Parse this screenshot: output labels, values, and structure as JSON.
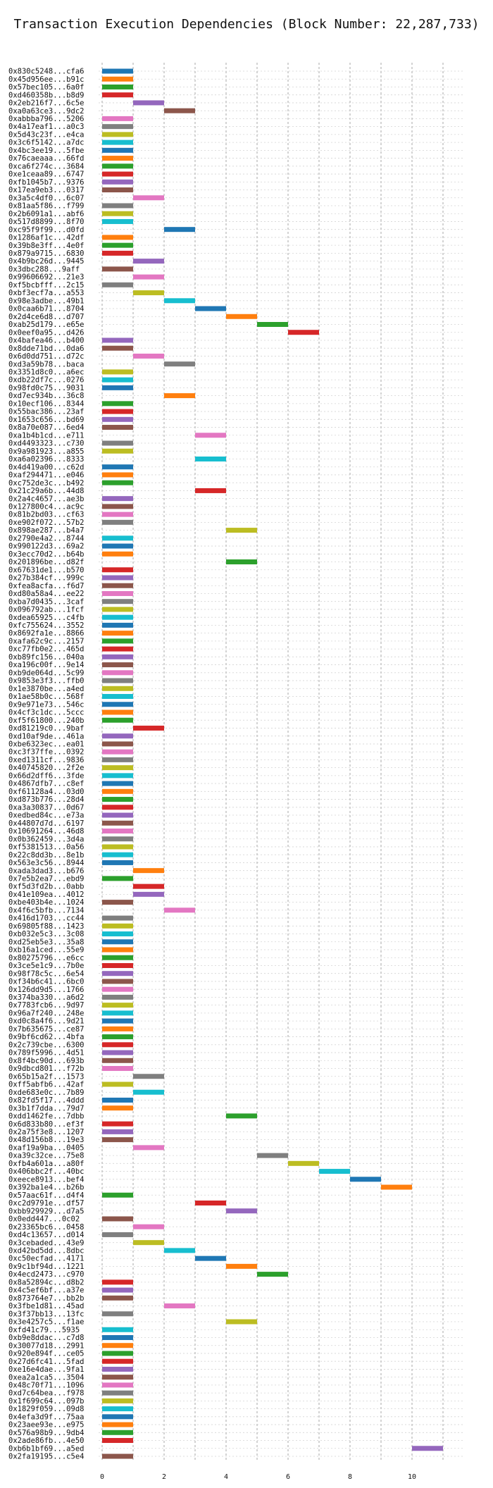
{
  "chart_data": {
    "type": "bar",
    "orientation": "horizontal-gantt",
    "title": "Transaction Execution Dependencies (Block Number: 22,287,733)",
    "xlabel": "",
    "ylabel": "",
    "xlim": [
      0,
      11.5
    ],
    "xticks": [
      0,
      2,
      4,
      6,
      8,
      10
    ],
    "grid": true,
    "palette": [
      "#1f77b4",
      "#ff7f0e",
      "#2ca02c",
      "#d62728",
      "#9467bd",
      "#8c564b",
      "#e377c2",
      "#7f7f7f",
      "#bcbd22",
      "#17becf"
    ],
    "transactions": [
      {
        "label": "0x830c5248...cfa6",
        "start": 0,
        "color": "#1f77b4"
      },
      {
        "label": "0x45d956ee...b91c",
        "start": 0,
        "color": "#ff7f0e"
      },
      {
        "label": "0x57bec105...6a0f",
        "start": 0,
        "color": "#2ca02c"
      },
      {
        "label": "0xd460358b...b8d9",
        "start": 0,
        "color": "#d62728"
      },
      {
        "label": "0x2eb216f7...6c5e",
        "start": 1,
        "color": "#9467bd"
      },
      {
        "label": "0xa0a63ce3...9dc2",
        "start": 2,
        "color": "#8c564b"
      },
      {
        "label": "0xabbba796...5206",
        "start": 0,
        "color": "#e377c2"
      },
      {
        "label": "0x4a17eaf1...a0c3",
        "start": 0,
        "color": "#7f7f7f"
      },
      {
        "label": "0x5d43c23f...e4ca",
        "start": 0,
        "color": "#bcbd22"
      },
      {
        "label": "0x3c6f5142...a7dc",
        "start": 0,
        "color": "#17becf"
      },
      {
        "label": "0x4bc3ee19...5fbe",
        "start": 0,
        "color": "#1f77b4"
      },
      {
        "label": "0x76caeaaa...66fd",
        "start": 0,
        "color": "#ff7f0e"
      },
      {
        "label": "0xca6f274c...3684",
        "start": 0,
        "color": "#2ca02c"
      },
      {
        "label": "0xe1ceaa89...6747",
        "start": 0,
        "color": "#d62728"
      },
      {
        "label": "0xfb1045b7...9376",
        "start": 0,
        "color": "#9467bd"
      },
      {
        "label": "0x17ea9eb3...0317",
        "start": 0,
        "color": "#8c564b"
      },
      {
        "label": "0x3a5c4df0...6c07",
        "start": 1,
        "color": "#e377c2"
      },
      {
        "label": "0x81aa5f86...f799",
        "start": 0,
        "color": "#7f7f7f"
      },
      {
        "label": "0x2b6091a1...abf6",
        "start": 0,
        "color": "#bcbd22"
      },
      {
        "label": "0x517d8899...8f70",
        "start": 0,
        "color": "#17becf"
      },
      {
        "label": "0xc95f9f99...d0fd",
        "start": 2,
        "color": "#1f77b4"
      },
      {
        "label": "0x1286af1c...42df",
        "start": 0,
        "color": "#ff7f0e"
      },
      {
        "label": "0x39b8e3ff...4e0f",
        "start": 0,
        "color": "#2ca02c"
      },
      {
        "label": "0x879a9715...6830",
        "start": 0,
        "color": "#d62728"
      },
      {
        "label": "0x4b9bc26d...9445",
        "start": 1,
        "color": "#9467bd"
      },
      {
        "label": "0x3dbc288...9aff",
        "start": 0,
        "color": "#8c564b"
      },
      {
        "label": "0x99606692...21e3",
        "start": 1,
        "color": "#e377c2"
      },
      {
        "label": "0xf5bcbfff...2c15",
        "start": 0,
        "color": "#7f7f7f"
      },
      {
        "label": "0xbf3ecf7a...a553",
        "start": 1,
        "color": "#bcbd22"
      },
      {
        "label": "0x98e3adbe...49b1",
        "start": 2,
        "color": "#17becf"
      },
      {
        "label": "0x0caa6b71...8704",
        "start": 3,
        "color": "#1f77b4"
      },
      {
        "label": "0x2d4ce6d8...d707",
        "start": 4,
        "color": "#ff7f0e"
      },
      {
        "label": "0xab25d179...e65e",
        "start": 5,
        "color": "#2ca02c"
      },
      {
        "label": "0x0eef0a95...d426",
        "start": 6,
        "color": "#d62728"
      },
      {
        "label": "0x4bafea46...b400",
        "start": 0,
        "color": "#9467bd"
      },
      {
        "label": "0x8dde71bd...0da6",
        "start": 0,
        "color": "#8c564b"
      },
      {
        "label": "0x6d0dd751...d72c",
        "start": 1,
        "color": "#e377c2"
      },
      {
        "label": "0xd3a59b78...baca",
        "start": 2,
        "color": "#7f7f7f"
      },
      {
        "label": "0x3351d8c0...a6ec",
        "start": 0,
        "color": "#bcbd22"
      },
      {
        "label": "0xdb22df7c...0276",
        "start": 0,
        "color": "#17becf"
      },
      {
        "label": "0x98fd0c75...9031",
        "start": 0,
        "color": "#1f77b4"
      },
      {
        "label": "0xd7ec934b...36c8",
        "start": 2,
        "color": "#ff7f0e"
      },
      {
        "label": "0x10ecf106...8344",
        "start": 0,
        "color": "#2ca02c"
      },
      {
        "label": "0x55bac386...23af",
        "start": 0,
        "color": "#d62728"
      },
      {
        "label": "0x1653c656...bd69",
        "start": 0,
        "color": "#9467bd"
      },
      {
        "label": "0x8a70e087...6ed4",
        "start": 0,
        "color": "#8c564b"
      },
      {
        "label": "0xa1b4b1cd...e711",
        "start": 3,
        "color": "#e377c2"
      },
      {
        "label": "0xd4493323...c730",
        "start": 0,
        "color": "#7f7f7f"
      },
      {
        "label": "0x9a981923...a855",
        "start": 0,
        "color": "#bcbd22"
      },
      {
        "label": "0xa6a02396...8333",
        "start": 3,
        "color": "#17becf"
      },
      {
        "label": "0x4d419a00...c62d",
        "start": 0,
        "color": "#1f77b4"
      },
      {
        "label": "0xaf294471...e046",
        "start": 0,
        "color": "#ff7f0e"
      },
      {
        "label": "0xc752de3c...b492",
        "start": 0,
        "color": "#2ca02c"
      },
      {
        "label": "0x21c29a6b...44d8",
        "start": 3,
        "color": "#d62728"
      },
      {
        "label": "0x2a4c4657...ae3b",
        "start": 0,
        "color": "#9467bd"
      },
      {
        "label": "0x127800c4...ac9c",
        "start": 0,
        "color": "#8c564b"
      },
      {
        "label": "0x81b2bd03...cf63",
        "start": 0,
        "color": "#e377c2"
      },
      {
        "label": "0xe902f072...57b2",
        "start": 0,
        "color": "#7f7f7f"
      },
      {
        "label": "0x898ae287...b4a7",
        "start": 4,
        "color": "#bcbd22"
      },
      {
        "label": "0x2790e4a2...8744",
        "start": 0,
        "color": "#17becf"
      },
      {
        "label": "0x990122d3...69a2",
        "start": 0,
        "color": "#1f77b4"
      },
      {
        "label": "0x3ecc70d2...b64b",
        "start": 0,
        "color": "#ff7f0e"
      },
      {
        "label": "0x201896be...d82f",
        "start": 4,
        "color": "#2ca02c"
      },
      {
        "label": "0x67631de1...b570",
        "start": 0,
        "color": "#d62728"
      },
      {
        "label": "0x27b384cf...999c",
        "start": 0,
        "color": "#9467bd"
      },
      {
        "label": "0xfea8acfa...f6d7",
        "start": 0,
        "color": "#8c564b"
      },
      {
        "label": "0xd80a58a4...ee22",
        "start": 0,
        "color": "#e377c2"
      },
      {
        "label": "0xba7d0435...3caf",
        "start": 0,
        "color": "#7f7f7f"
      },
      {
        "label": "0x096792ab...1fcf",
        "start": 0,
        "color": "#bcbd22"
      },
      {
        "label": "0xdea65925...c4fb",
        "start": 0,
        "color": "#17becf"
      },
      {
        "label": "0xfc755624...3552",
        "start": 0,
        "color": "#1f77b4"
      },
      {
        "label": "0x8692fa1e...8866",
        "start": 0,
        "color": "#ff7f0e"
      },
      {
        "label": "0xafa62c9c...2157",
        "start": 0,
        "color": "#2ca02c"
      },
      {
        "label": "0xc77fb0e2...465d",
        "start": 0,
        "color": "#d62728"
      },
      {
        "label": "0xb89fc156...040a",
        "start": 0,
        "color": "#9467bd"
      },
      {
        "label": "0xa196c00f...9e14",
        "start": 0,
        "color": "#8c564b"
      },
      {
        "label": "0xb9de064d...5c99",
        "start": 0,
        "color": "#e377c2"
      },
      {
        "label": "0x9853e3f3...ffb0",
        "start": 0,
        "color": "#7f7f7f"
      },
      {
        "label": "0x1e3870be...a4ed",
        "start": 0,
        "color": "#bcbd22"
      },
      {
        "label": "0x1ae58b0c...568f",
        "start": 0,
        "color": "#17becf"
      },
      {
        "label": "0x9e971e73...546c",
        "start": 0,
        "color": "#1f77b4"
      },
      {
        "label": "0x4cf3c1dc...5ccc",
        "start": 0,
        "color": "#ff7f0e"
      },
      {
        "label": "0xf5f61800...240b",
        "start": 0,
        "color": "#2ca02c"
      },
      {
        "label": "0xd81219c0...9baf",
        "start": 1,
        "color": "#d62728"
      },
      {
        "label": "0xd10af9de...461a",
        "start": 0,
        "color": "#9467bd"
      },
      {
        "label": "0xbe6323ec...ea01",
        "start": 0,
        "color": "#8c564b"
      },
      {
        "label": "0xc3f37ffe...0392",
        "start": 0,
        "color": "#e377c2"
      },
      {
        "label": "0xed1311cf...9836",
        "start": 0,
        "color": "#7f7f7f"
      },
      {
        "label": "0x40745820...2f2e",
        "start": 0,
        "color": "#bcbd22"
      },
      {
        "label": "0x66d2dff6...3fde",
        "start": 0,
        "color": "#17becf"
      },
      {
        "label": "0x4867dfb7...c8ef",
        "start": 0,
        "color": "#1f77b4"
      },
      {
        "label": "0xf61128a4...03d0",
        "start": 0,
        "color": "#ff7f0e"
      },
      {
        "label": "0xd873b776...28d4",
        "start": 0,
        "color": "#2ca02c"
      },
      {
        "label": "0xa3a30837...0d67",
        "start": 0,
        "color": "#d62728"
      },
      {
        "label": "0xedbed84c...e73a",
        "start": 0,
        "color": "#9467bd"
      },
      {
        "label": "0x44807d7d...6197",
        "start": 0,
        "color": "#8c564b"
      },
      {
        "label": "0x10691264...46d8",
        "start": 0,
        "color": "#e377c2"
      },
      {
        "label": "0x0b362459...3d4a",
        "start": 0,
        "color": "#7f7f7f"
      },
      {
        "label": "0xf5381513...0a56",
        "start": 0,
        "color": "#bcbd22"
      },
      {
        "label": "0x22c8dd3b...8e1b",
        "start": 0,
        "color": "#17becf"
      },
      {
        "label": "0x563e3c56...8944",
        "start": 0,
        "color": "#1f77b4"
      },
      {
        "label": "0xada3dad3...b676",
        "start": 1,
        "color": "#ff7f0e"
      },
      {
        "label": "0x7e5b2ea7...ebd9",
        "start": 0,
        "color": "#2ca02c"
      },
      {
        "label": "0xf5d3fd2b...0abb",
        "start": 1,
        "color": "#d62728"
      },
      {
        "label": "0x41e109ea...4012",
        "start": 1,
        "color": "#9467bd"
      },
      {
        "label": "0xbe403b4e...1024",
        "start": 0,
        "color": "#8c564b"
      },
      {
        "label": "0x4f6c5bfb...7134",
        "start": 2,
        "color": "#e377c2"
      },
      {
        "label": "0x416d1703...cc44",
        "start": 0,
        "color": "#7f7f7f"
      },
      {
        "label": "0x69805f88...1423",
        "start": 0,
        "color": "#bcbd22"
      },
      {
        "label": "0xb032e5c3...3c08",
        "start": 0,
        "color": "#17becf"
      },
      {
        "label": "0xd25eb5e3...35a8",
        "start": 0,
        "color": "#1f77b4"
      },
      {
        "label": "0xb16a1ced...55e9",
        "start": 0,
        "color": "#ff7f0e"
      },
      {
        "label": "0x80275796...e6cc",
        "start": 0,
        "color": "#2ca02c"
      },
      {
        "label": "0x3ce5e1c9...7b0e",
        "start": 0,
        "color": "#d62728"
      },
      {
        "label": "0x98f78c5c...6e54",
        "start": 0,
        "color": "#9467bd"
      },
      {
        "label": "0xf34b6c41...6bc0",
        "start": 0,
        "color": "#8c564b"
      },
      {
        "label": "0x126dd9d5...1766",
        "start": 0,
        "color": "#e377c2"
      },
      {
        "label": "0x374ba330...a6d2",
        "start": 0,
        "color": "#7f7f7f"
      },
      {
        "label": "0x7783fcb6...9d97",
        "start": 0,
        "color": "#bcbd22"
      },
      {
        "label": "0x96a7f240...248e",
        "start": 0,
        "color": "#17becf"
      },
      {
        "label": "0xd0c8a4f6...9d21",
        "start": 0,
        "color": "#1f77b4"
      },
      {
        "label": "0x7b635675...ce87",
        "start": 0,
        "color": "#ff7f0e"
      },
      {
        "label": "0x9bf6cd62...4bfa",
        "start": 0,
        "color": "#2ca02c"
      },
      {
        "label": "0x2c739cbe...6300",
        "start": 0,
        "color": "#d62728"
      },
      {
        "label": "0x789f5996...4d51",
        "start": 0,
        "color": "#9467bd"
      },
      {
        "label": "0x8f4bc90d...693b",
        "start": 0,
        "color": "#8c564b"
      },
      {
        "label": "0x9dbcd801...f72b",
        "start": 0,
        "color": "#e377c2"
      },
      {
        "label": "0x65b15a2f...1573",
        "start": 1,
        "color": "#7f7f7f"
      },
      {
        "label": "0xff5abfb6...42af",
        "start": 0,
        "color": "#bcbd22"
      },
      {
        "label": "0xde683e0c...7b89",
        "start": 1,
        "color": "#17becf"
      },
      {
        "label": "0x82fd5f17...4ddd",
        "start": 0,
        "color": "#1f77b4"
      },
      {
        "label": "0x3b1f7dda...79d7",
        "start": 0,
        "color": "#ff7f0e"
      },
      {
        "label": "0xdd1462fe...7dbb",
        "start": 4,
        "color": "#2ca02c"
      },
      {
        "label": "0x6d833b80...ef3f",
        "start": 0,
        "color": "#d62728"
      },
      {
        "label": "0x2a75f3e8...1207",
        "start": 0,
        "color": "#9467bd"
      },
      {
        "label": "0x48d156b8...19e3",
        "start": 0,
        "color": "#8c564b"
      },
      {
        "label": "0xaf19a9ba...0405",
        "start": 1,
        "color": "#e377c2"
      },
      {
        "label": "0xa39c32ce...75e8",
        "start": 5,
        "color": "#7f7f7f"
      },
      {
        "label": "0xfb4a601a...a80f",
        "start": 6,
        "color": "#bcbd22"
      },
      {
        "label": "0x406bbc2f...40bc",
        "start": 7,
        "color": "#17becf"
      },
      {
        "label": "0xeece8913...bef4",
        "start": 8,
        "color": "#1f77b4"
      },
      {
        "label": "0x392ba1e4...b26b",
        "start": 9,
        "color": "#ff7f0e"
      },
      {
        "label": "0x57aac61f...d4f4",
        "start": 0,
        "color": "#2ca02c"
      },
      {
        "label": "0xc2d9791e...df57",
        "start": 3,
        "color": "#d62728"
      },
      {
        "label": "0xbb929929...d7a5",
        "start": 4,
        "color": "#9467bd"
      },
      {
        "label": "0x0edd447...0c02",
        "start": 0,
        "color": "#8c564b"
      },
      {
        "label": "0x23365bc6...0458",
        "start": 1,
        "color": "#e377c2"
      },
      {
        "label": "0xd4c13657...d014",
        "start": 0,
        "color": "#7f7f7f"
      },
      {
        "label": "0x3cebaded...43e9",
        "start": 1,
        "color": "#bcbd22"
      },
      {
        "label": "0xd42bd5dd...8dbc",
        "start": 2,
        "color": "#17becf"
      },
      {
        "label": "0xc50ecfad...4171",
        "start": 3,
        "color": "#1f77b4"
      },
      {
        "label": "0x9c1bf94d...1221",
        "start": 4,
        "color": "#ff7f0e"
      },
      {
        "label": "0x4ecd2473...c970",
        "start": 5,
        "color": "#2ca02c"
      },
      {
        "label": "0x8a52894c...d8b2",
        "start": 0,
        "color": "#d62728"
      },
      {
        "label": "0x4c5ef6bf...a37e",
        "start": 0,
        "color": "#9467bd"
      },
      {
        "label": "0x873764e7...bb2b",
        "start": 0,
        "color": "#8c564b"
      },
      {
        "label": "0x3fbe1d81...45ad",
        "start": 2,
        "color": "#e377c2"
      },
      {
        "label": "0x3f37bb13...13fc",
        "start": 0,
        "color": "#7f7f7f"
      },
      {
        "label": "0x3e4257c5...f1ae",
        "start": 4,
        "color": "#bcbd22"
      },
      {
        "label": "0xfd41c79...5935",
        "start": 0,
        "color": "#17becf"
      },
      {
        "label": "0xb9e8ddac...c7d8",
        "start": 0,
        "color": "#1f77b4"
      },
      {
        "label": "0x30077d18...2991",
        "start": 0,
        "color": "#ff7f0e"
      },
      {
        "label": "0x920e894f...ce05",
        "start": 0,
        "color": "#2ca02c"
      },
      {
        "label": "0x27d6fc41...5fad",
        "start": 0,
        "color": "#d62728"
      },
      {
        "label": "0xe16e4dae...9fa1",
        "start": 0,
        "color": "#9467bd"
      },
      {
        "label": "0xea2a1ca5...3504",
        "start": 0,
        "color": "#8c564b"
      },
      {
        "label": "0x48c70f71...1096",
        "start": 0,
        "color": "#e377c2"
      },
      {
        "label": "0xd7c64bea...f978",
        "start": 0,
        "color": "#7f7f7f"
      },
      {
        "label": "0x1f699c64...097b",
        "start": 0,
        "color": "#bcbd22"
      },
      {
        "label": "0x1829f059...09d8",
        "start": 0,
        "color": "#17becf"
      },
      {
        "label": "0x4efa3d9f...75aa",
        "start": 0,
        "color": "#1f77b4"
      },
      {
        "label": "0x23aee93e...e975",
        "start": 0,
        "color": "#ff7f0e"
      },
      {
        "label": "0x576a98b9...9db4",
        "start": 0,
        "color": "#2ca02c"
      },
      {
        "label": "0x2ade86fb...4e50",
        "start": 0,
        "color": "#d62728"
      },
      {
        "label": "0xb6b1bf69...a5ed",
        "start": 10,
        "color": "#9467bd"
      },
      {
        "label": "0x2fa19195...c5e4",
        "start": 0,
        "color": "#8c564b"
      }
    ]
  }
}
